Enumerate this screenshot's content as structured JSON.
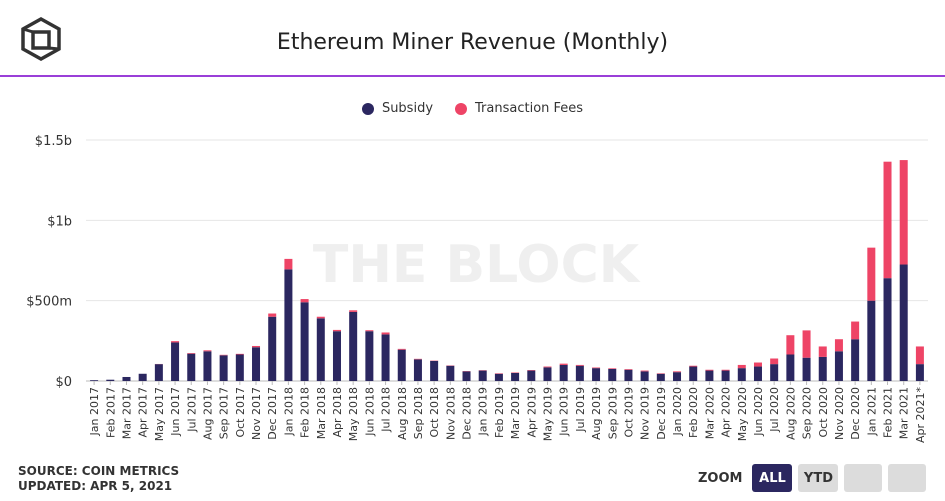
{
  "header": {
    "title": "Ethereum Miner Revenue (Monthly)"
  },
  "footer": {
    "source": "SOURCE: COIN METRICS",
    "updated": "UPDATED: APR 5, 2021"
  },
  "zoom": {
    "label": "ZOOM",
    "all": "ALL",
    "ytd": "YTD"
  },
  "watermark": "THE BLOCK",
  "colors": {
    "subsidy": "#2b2760",
    "fees": "#ee4466",
    "accent": "#9a3fd8"
  },
  "chart_data": {
    "type": "bar",
    "stacked": true,
    "title": "Ethereum Miner Revenue (Monthly)",
    "legend_position": "top",
    "grid": true,
    "ylim": [
      0,
      1500000000
    ],
    "y_ticks": [
      {
        "value": 0,
        "label": "$0"
      },
      {
        "value": 500000000,
        "label": "$500m"
      },
      {
        "value": 1000000000,
        "label": "$1b"
      },
      {
        "value": 1500000000,
        "label": "$1.5b"
      }
    ],
    "categories": [
      "Jan 2017",
      "Feb 2017",
      "Mar 2017",
      "Apr 2017",
      "May 2017",
      "Jun 2017",
      "Jul 2017",
      "Aug 2017",
      "Sep 2017",
      "Oct 2017",
      "Nov 2017",
      "Dec 2017",
      "Jan 2018",
      "Feb 2018",
      "Mar 2018",
      "Apr 2018",
      "May 2018",
      "Jun 2018",
      "Jul 2018",
      "Aug 2018",
      "Sep 2018",
      "Oct 2018",
      "Nov 2018",
      "Dec 2018",
      "Jan 2019",
      "Feb 2019",
      "Mar 2019",
      "Apr 2019",
      "May 2019",
      "Jun 2019",
      "Jul 2019",
      "Aug 2019",
      "Sep 2019",
      "Oct 2019",
      "Nov 2019",
      "Dec 2019",
      "Jan 2020",
      "Feb 2020",
      "Mar 2020",
      "Apr 2020",
      "May 2020",
      "Jun 2020",
      "Jul 2020",
      "Aug 2020",
      "Sep 2020",
      "Oct 2020",
      "Nov 2020",
      "Dec 2020",
      "Jan 2021",
      "Feb 2021",
      "Mar 2021",
      "Apr 2021*"
    ],
    "series": [
      {
        "name": "Subsidy",
        "color": "#2b2760",
        "values": [
          5000000,
          8000000,
          25000000,
          45000000,
          105000000,
          240000000,
          170000000,
          185000000,
          160000000,
          165000000,
          210000000,
          400000000,
          695000000,
          490000000,
          390000000,
          310000000,
          430000000,
          310000000,
          290000000,
          195000000,
          135000000,
          125000000,
          95000000,
          60000000,
          65000000,
          45000000,
          50000000,
          65000000,
          85000000,
          100000000,
          95000000,
          80000000,
          75000000,
          70000000,
          60000000,
          45000000,
          55000000,
          90000000,
          65000000,
          65000000,
          80000000,
          90000000,
          105000000,
          165000000,
          145000000,
          150000000,
          185000000,
          260000000,
          500000000,
          640000000,
          725000000,
          105000000
        ]
      },
      {
        "name": "Transaction Fees",
        "color": "#ee4466",
        "values": [
          0,
          0,
          0,
          0,
          1000000,
          8000000,
          4000000,
          6000000,
          3000000,
          4000000,
          8000000,
          20000000,
          65000000,
          20000000,
          10000000,
          8000000,
          10000000,
          6000000,
          12000000,
          5000000,
          3000000,
          2000000,
          2000000,
          2000000,
          2000000,
          3000000,
          3000000,
          3000000,
          5000000,
          8000000,
          5000000,
          4000000,
          4000000,
          4000000,
          5000000,
          3000000,
          5000000,
          5000000,
          5000000,
          5000000,
          20000000,
          25000000,
          35000000,
          120000000,
          170000000,
          65000000,
          75000000,
          110000000,
          330000000,
          725000000,
          650000000,
          110000000
        ]
      }
    ]
  }
}
